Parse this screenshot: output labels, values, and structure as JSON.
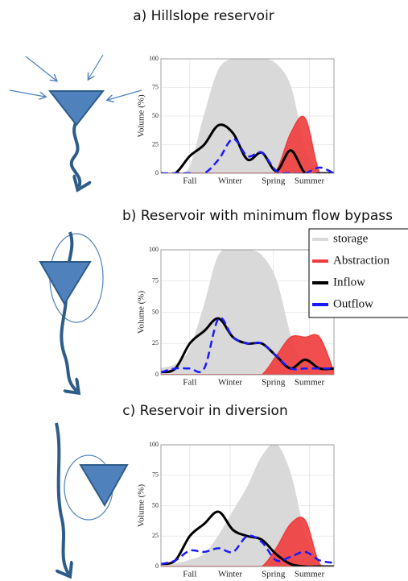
{
  "chart_data": [
    {
      "type": "line",
      "title": "a) Hillslope reservoir",
      "y_label": "Volume (%)",
      "x": [
        0,
        1,
        2,
        3,
        4,
        5,
        6,
        7,
        8,
        9,
        10,
        11,
        12
      ],
      "xlim": [
        0,
        12
      ],
      "xticks": [
        {
          "value": 2,
          "label": "Fall"
        },
        {
          "value": 4.8,
          "label": "Winter"
        },
        {
          "value": 7.8,
          "label": "Spring"
        },
        {
          "value": 10.3,
          "label": "Summer"
        }
      ],
      "ylim": [
        0,
        100
      ],
      "yticks": [
        0,
        25,
        50,
        75,
        100
      ],
      "grid": true,
      "series": [
        {
          "color": "#d9d9d9",
          "style": "area",
          "values": [
            0,
            0,
            5,
            50,
            90,
            100,
            100,
            100,
            95,
            75,
            20,
            0,
            0
          ]
        },
        {
          "color": "#f03c3c",
          "style": "area",
          "values": [
            0,
            0,
            0,
            0,
            0,
            0,
            0,
            0,
            2,
            35,
            48,
            0,
            0
          ]
        },
        {
          "color": "#000000",
          "style": "line",
          "values": [
            0,
            0,
            15,
            25,
            42,
            35,
            12,
            18,
            2,
            20,
            0,
            0,
            0
          ]
        },
        {
          "color": "#1a1aff",
          "style": "dashed",
          "values": [
            0,
            0,
            0,
            0,
            12,
            30,
            15,
            18,
            2,
            0,
            0,
            5,
            0
          ]
        }
      ]
    },
    {
      "type": "line",
      "title": "b) Reservoir with minimum flow bypass",
      "y_label": "Volume (%)",
      "x": [
        0,
        1,
        2,
        3,
        4,
        5,
        6,
        7,
        8,
        9,
        10,
        11,
        12
      ],
      "xlim": [
        0,
        12
      ],
      "xticks": [
        {
          "value": 2,
          "label": "Fall"
        },
        {
          "value": 4.8,
          "label": "Winter"
        },
        {
          "value": 7.8,
          "label": "Spring"
        },
        {
          "value": 10.3,
          "label": "Summer"
        }
      ],
      "ylim": [
        0,
        100
      ],
      "yticks": [
        0,
        25,
        50,
        75,
        100
      ],
      "grid": true,
      "legend": "right",
      "series": [
        {
          "name": "storage",
          "color": "#d9d9d9",
          "style": "area",
          "values": [
            5,
            8,
            20,
            55,
            95,
            100,
            100,
            95,
            75,
            30,
            5,
            0,
            0
          ]
        },
        {
          "name": "Abstraction",
          "color": "#f03c3c",
          "style": "area",
          "values": [
            0,
            0,
            0,
            0,
            0,
            0,
            0,
            0,
            15,
            30,
            30,
            30,
            2
          ]
        },
        {
          "name": "Inflow",
          "color": "#000000",
          "style": "line",
          "values": [
            2,
            5,
            25,
            35,
            45,
            30,
            25,
            25,
            15,
            5,
            12,
            5,
            5
          ]
        },
        {
          "name": "Outflow",
          "color": "#1a1aff",
          "style": "dashed",
          "values": [
            2,
            5,
            5,
            5,
            45,
            30,
            25,
            25,
            15,
            5,
            5,
            5,
            5
          ]
        }
      ]
    },
    {
      "type": "line",
      "title": "c) Reservoir in diversion",
      "y_label": "Volume (%)",
      "x": [
        0,
        1,
        2,
        3,
        4,
        5,
        6,
        7,
        8,
        9,
        10,
        11,
        12
      ],
      "xlim": [
        0,
        12
      ],
      "xticks": [
        {
          "value": 2,
          "label": "Fall"
        },
        {
          "value": 4.8,
          "label": "Winter"
        },
        {
          "value": 7.8,
          "label": "Spring"
        },
        {
          "value": 10.3,
          "label": "Summer"
        }
      ],
      "ylim": [
        0,
        100
      ],
      "yticks": [
        0,
        25,
        50,
        75,
        100
      ],
      "grid": true,
      "series": [
        {
          "color": "#d9d9d9",
          "style": "area",
          "values": [
            0,
            2,
            5,
            10,
            25,
            45,
            65,
            90,
            100,
            75,
            25,
            3,
            0
          ]
        },
        {
          "color": "#f03c3c",
          "style": "area",
          "values": [
            0,
            0,
            0,
            0,
            0,
            0,
            0,
            0,
            15,
            35,
            38,
            2,
            0
          ]
        },
        {
          "color": "#000000",
          "style": "line",
          "values": [
            2,
            5,
            25,
            35,
            45,
            30,
            25,
            22,
            10,
            2,
            0,
            0,
            0
          ]
        },
        {
          "color": "#1a1aff",
          "style": "dashed",
          "values": [
            2,
            5,
            13,
            12,
            15,
            12,
            25,
            20,
            5,
            8,
            12,
            5,
            3
          ]
        }
      ]
    }
  ]
}
